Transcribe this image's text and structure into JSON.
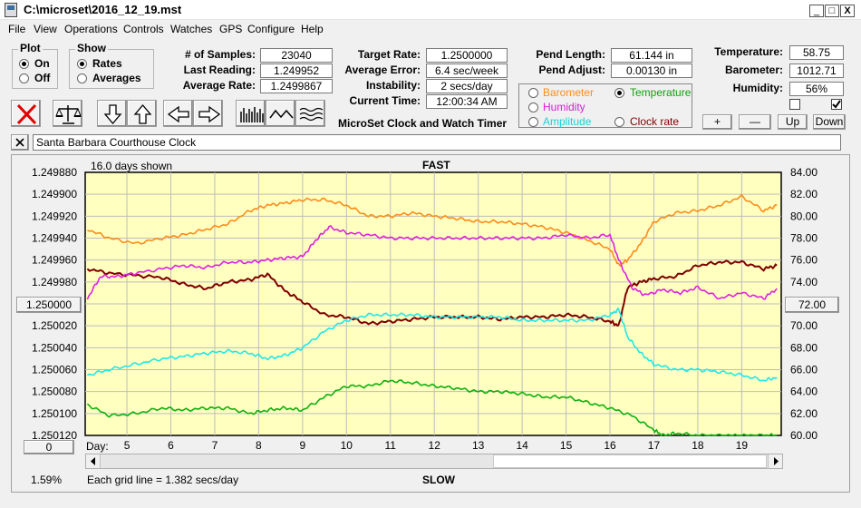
{
  "window": {
    "title": "C:\\microset\\2016_12_19.mst",
    "minimize": "_",
    "maximize": "□",
    "close": "X"
  },
  "menu": [
    "File",
    "View",
    "Operations",
    "Controls",
    "Watches",
    "GPS",
    "Configure",
    "Help"
  ],
  "plot_group": {
    "title": "Plot",
    "on": "On",
    "off": "Off"
  },
  "show_group": {
    "title": "Show",
    "rates": "Rates",
    "averages": "Averages"
  },
  "stats": {
    "samples_label": "# of Samples:",
    "samples": "23040",
    "last_reading_label": "Last Reading:",
    "last_reading": "1.249952",
    "average_rate_label": "Average Rate:",
    "average_rate": "1.2499867"
  },
  "rates": {
    "target_label": "Target Rate:",
    "target": "1.2500000",
    "avg_error_label": "Average Error:",
    "avg_error": "6.4 sec/week",
    "instability_label": "Instability:",
    "instability": "2 secs/day",
    "current_time_label": "Current Time:",
    "current_time": "12:00:34 AM"
  },
  "app_name": "MicroSet Clock and Watch Timer",
  "pendulum": {
    "length_label": "Pend Length:",
    "length": "61.144 in",
    "adjust_label": "Pend Adjust:",
    "adjust": "0.00130 in"
  },
  "channels": {
    "barometer": "Barometer",
    "temperature": "Temperature",
    "humidity": "Humidity",
    "amplitude": "Amplitude",
    "clock_rate": "Clock rate"
  },
  "environment": {
    "temperature_label": "Temperature:",
    "temperature": "58.75",
    "barometer_label": "Barometer:",
    "barometer": "1012.71",
    "humidity_label": "Humidity:",
    "humidity": "56%"
  },
  "adjust_buttons": {
    "plus": "+",
    "minus": "—",
    "up": "Up",
    "down": "Down"
  },
  "clock_name": "Santa Barbara Courthouse Clock",
  "plot": {
    "days_shown": "16.0 days shown",
    "top_label": "FAST",
    "bottom_label": "SLOW",
    "center_button": "1.250000",
    "right_center_button": "72.00",
    "zero_button": "0",
    "day_label": "Day:",
    "percent": "1.59%",
    "grid_note": "Each grid line = 1.382 secs/day"
  },
  "chart_data": {
    "type": "line",
    "x_ticks": [
      5,
      6,
      7,
      8,
      9,
      10,
      11,
      12,
      13,
      14,
      15,
      16,
      17,
      18,
      19
    ],
    "xlim": [
      4.05,
      19.9
    ],
    "y_left_ticks": [
      "1.249880",
      "1.249900",
      "1.249920",
      "1.249940",
      "1.249960",
      "1.249980",
      "1.250000",
      "1.250020",
      "1.250040",
      "1.250060",
      "1.250080",
      "1.250100",
      "1.250120"
    ],
    "ylim_left": [
      1.24988,
      1.25012
    ],
    "y_right_ticks": [
      "84.00",
      "82.00",
      "80.00",
      "78.00",
      "76.00",
      "74.00",
      "72.00",
      "70.00",
      "68.00",
      "66.00",
      "64.00",
      "62.00",
      "60.00"
    ],
    "ylim_right": [
      60,
      84
    ],
    "grid": true,
    "series": [
      {
        "color": "#800000",
        "x": [
          4.1,
          4.6,
          5.2,
          5.8,
          6.3,
          6.8,
          7.3,
          7.8,
          8.2,
          8.6,
          9.0,
          9.5,
          10.0,
          10.5,
          11.0,
          11.5,
          12.0,
          12.5,
          13.0,
          13.5,
          14.0,
          14.5,
          15.0,
          15.5,
          16.0,
          16.2,
          16.4,
          16.7,
          17.0,
          17.5,
          18.0,
          18.5,
          19.0,
          19.5,
          19.8
        ],
        "y": [
          1.249968,
          1.249972,
          1.249974,
          1.249976,
          1.249982,
          1.249986,
          1.24998,
          1.249978,
          1.249973,
          1.249988,
          1.249998,
          1.25001,
          1.250012,
          1.250018,
          1.250016,
          1.250014,
          1.250012,
          1.250012,
          1.250012,
          1.250014,
          1.250012,
          1.250012,
          1.25001,
          1.250012,
          1.250016,
          1.25002,
          1.249985,
          1.24998,
          1.249977,
          1.249975,
          1.249965,
          1.249962,
          1.249962,
          1.249968,
          1.249965
        ]
      },
      {
        "color": "#ff8c1a",
        "x": [
          4.1,
          4.6,
          5.2,
          5.8,
          6.3,
          6.8,
          7.3,
          7.8,
          8.2,
          8.6,
          9.0,
          9.5,
          10.0,
          10.5,
          11.0,
          11.5,
          12.0,
          12.5,
          13.0,
          13.5,
          14.0,
          14.5,
          15.0,
          15.5,
          16.0,
          16.2,
          16.4,
          16.7,
          17.0,
          17.5,
          18.0,
          18.5,
          19.0,
          19.5,
          19.8
        ],
        "y": [
          78.8,
          78.0,
          77.5,
          78.0,
          78.3,
          78.8,
          79.3,
          80.5,
          81.0,
          81.2,
          81.5,
          81.5,
          81.0,
          80.0,
          80.0,
          80.3,
          80.0,
          79.8,
          79.5,
          79.5,
          79.3,
          79.0,
          78.5,
          77.8,
          77.0,
          75.5,
          76.0,
          77.5,
          79.5,
          80.3,
          80.5,
          81.0,
          81.8,
          80.5,
          81.0
        ]
      },
      {
        "color": "#e020e0",
        "x": [
          4.1,
          4.4,
          4.8,
          5.2,
          5.8,
          6.3,
          6.8,
          7.3,
          7.8,
          8.2,
          8.6,
          9.0,
          9.3,
          9.6,
          10.0,
          10.5,
          11.0,
          11.5,
          12.0,
          12.5,
          13.0,
          13.5,
          14.0,
          14.5,
          15.0,
          15.5,
          16.0,
          16.2,
          16.5,
          16.8,
          17.2,
          17.6,
          18.0,
          18.5,
          19.0,
          19.5,
          19.8
        ],
        "y": [
          72.5,
          74.5,
          74.5,
          74.8,
          75.2,
          75.5,
          75.3,
          75.8,
          75.8,
          76.0,
          76.2,
          76.3,
          77.8,
          79.0,
          78.5,
          78.3,
          78.0,
          78.0,
          78.0,
          78.0,
          78.0,
          78.0,
          78.0,
          78.0,
          78.3,
          78.0,
          78.3,
          76.0,
          73.5,
          72.8,
          73.3,
          73.0,
          73.5,
          72.5,
          73.0,
          72.5,
          73.4
        ]
      },
      {
        "color": "#20e8e8",
        "x": [
          4.1,
          4.6,
          5.2,
          5.8,
          6.3,
          6.8,
          7.3,
          7.8,
          8.2,
          8.6,
          9.0,
          9.5,
          10.0,
          10.5,
          11.0,
          11.5,
          12.0,
          12.5,
          13.0,
          13.5,
          14.0,
          14.5,
          15.0,
          15.5,
          16.0,
          16.2,
          16.4,
          16.7,
          17.0,
          17.5,
          18.0,
          18.5,
          19.0,
          19.5,
          19.8
        ],
        "y": [
          65.5,
          66.0,
          66.5,
          67.0,
          67.2,
          67.5,
          67.7,
          67.5,
          67.0,
          67.3,
          68.0,
          69.5,
          70.5,
          71.0,
          71.0,
          71.0,
          70.8,
          70.8,
          70.8,
          70.8,
          70.5,
          70.5,
          70.5,
          70.5,
          71.0,
          71.5,
          69.0,
          67.5,
          66.5,
          66.0,
          66.0,
          65.8,
          65.5,
          65.0,
          65.3
        ]
      },
      {
        "color": "#10b010",
        "x": [
          4.1,
          4.6,
          5.2,
          5.8,
          6.3,
          6.8,
          7.3,
          7.8,
          8.2,
          8.6,
          9.0,
          9.5,
          10.0,
          10.5,
          11.0,
          11.5,
          12.0,
          12.5,
          13.0,
          13.5,
          14.0,
          14.5,
          15.0,
          15.5,
          16.0,
          16.5,
          17.0,
          17.2,
          17.5,
          18.0,
          18.5,
          19.0,
          19.5,
          19.8
        ],
        "y": [
          62.8,
          61.8,
          62.0,
          62.5,
          62.3,
          62.5,
          62.5,
          62.0,
          62.3,
          62.5,
          62.3,
          63.5,
          64.5,
          64.5,
          65.0,
          64.8,
          64.5,
          64.3,
          64.0,
          64.0,
          63.8,
          63.5,
          63.5,
          63.0,
          62.5,
          61.8,
          60.5,
          60.0,
          60.2,
          60.0,
          60.0,
          60.0,
          60.0,
          60.0
        ]
      }
    ]
  }
}
